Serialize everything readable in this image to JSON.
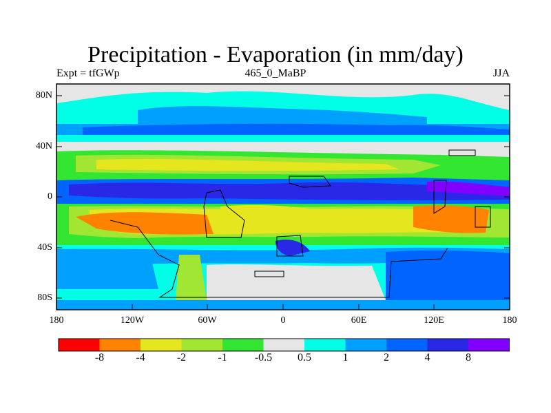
{
  "header": {
    "title": "Precipitation - Evaporation (in mm/day)",
    "left": "Expt = tfGWp",
    "center": "465_0_MaBP",
    "right": "JJA"
  },
  "map": {
    "y_ticks": [
      "80N",
      "40N",
      "0",
      "40S",
      "80S"
    ],
    "x_ticks": [
      "180",
      "120W",
      "60W",
      "0",
      "60E",
      "120E",
      "180"
    ]
  },
  "legend": {
    "colors": [
      "#ff0000",
      "#ff8200",
      "#e6e61e",
      "#a0e632",
      "#32e632",
      "#e6e6e6",
      "#00ffe6",
      "#00a0ff",
      "#0064ff",
      "#2828e6",
      "#8200ff"
    ],
    "labels": [
      "-8",
      "-4",
      "-2",
      "-1",
      "-0.5",
      "0.5",
      "1",
      "2",
      "4",
      "8"
    ]
  }
}
